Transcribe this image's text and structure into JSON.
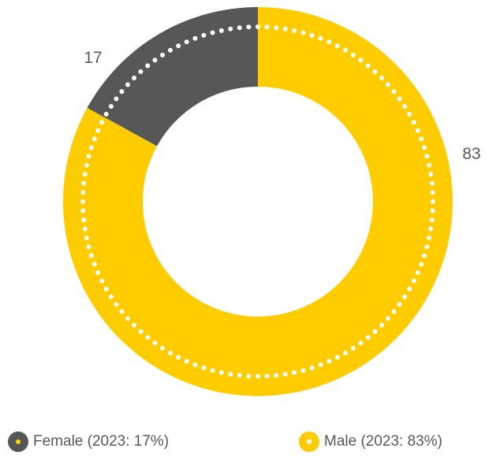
{
  "chart_data": {
    "type": "pie",
    "categories": [
      "Female",
      "Male"
    ],
    "values": [
      17,
      83
    ],
    "data_labels": [
      "17",
      "83"
    ],
    "legend": [
      "Female (2023: 17%)",
      "Male (2023: 83%)"
    ],
    "legend_position": "bottom",
    "hole": true,
    "colors": {
      "Female": "#575757",
      "Male": "#ffcc00"
    },
    "dotted_ring": true,
    "dot_color": "#ffffff"
  }
}
